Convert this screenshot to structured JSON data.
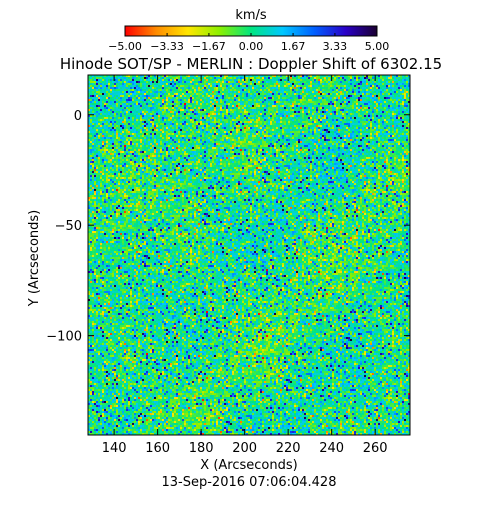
{
  "chart_data": {
    "type": "heatmap",
    "title": "Hinode SOT/SP - MERLIN : Doppler Shift of 6302.15",
    "xlabel": "X (Arcseconds)",
    "ylabel": "Y (Arcseconds)",
    "timestamp": "13-Sep-2016 07:06:04.428",
    "xlim": [
      128,
      276
    ],
    "ylim": [
      -145,
      18
    ],
    "x_ticks": [
      140,
      160,
      180,
      200,
      220,
      240,
      260
    ],
    "x_tick_labels": [
      "140",
      "160",
      "180",
      "200",
      "220",
      "240",
      "260"
    ],
    "y_ticks": [
      0,
      -50,
      -100
    ],
    "y_tick_labels": [
      "0",
      "−50",
      "−100"
    ],
    "colorbar": {
      "label": "km/s",
      "range": [
        -5.0,
        5.0
      ],
      "ticks": [
        -5.0,
        -3.33,
        -1.67,
        0.0,
        1.67,
        3.33,
        5.0
      ],
      "tick_labels": [
        "−5.00",
        "−3.33",
        "−1.67",
        "0.00",
        "1.67",
        "3.33",
        "5.00"
      ],
      "colors": [
        "#ff0000",
        "#ff8c00",
        "#ffe600",
        "#8cf000",
        "#00e67f",
        "#00c8ff",
        "#0060ff",
        "#2a00c8",
        "#1a0030"
      ]
    },
    "field": {
      "description_of_values": "noise-dominated Doppler velocity, mostly near 0 km/s",
      "mean": 0.0,
      "typical_range": [
        -2.0,
        2.5
      ]
    }
  }
}
